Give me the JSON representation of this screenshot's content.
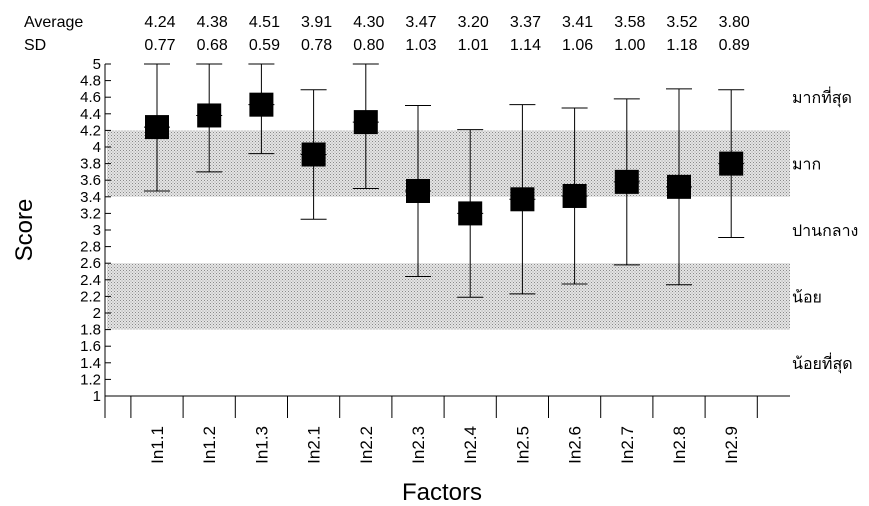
{
  "chart_data": {
    "type": "scatter",
    "xlabel": "Factors",
    "ylabel": "Score",
    "ylim": [
      1,
      5
    ],
    "y_ticks": [
      "1",
      "1.2",
      "1.4",
      "1.6",
      "1.8",
      "2",
      "2.2",
      "2.4",
      "2.6",
      "2.8",
      "3",
      "3.2",
      "3.4",
      "3.6",
      "3.8",
      "4",
      "4.2",
      "4.4",
      "4.6",
      "4.8",
      "5"
    ],
    "categories": [
      "In1.1",
      "In1.2",
      "In1.3",
      "In2.1",
      "In2.2",
      "In2.3",
      "In2.4",
      "In2.5",
      "In2.6",
      "In2.7",
      "In2.8",
      "In2.9"
    ],
    "average_label": "Average",
    "sd_label": "SD",
    "average_text": [
      "4.24",
      "4.38",
      "4.51",
      "3.91",
      "4.30",
      "3.47",
      "3.20",
      "3.37",
      "3.41",
      "3.58",
      "3.52",
      "3.80"
    ],
    "sd_text": [
      "0.77",
      "0.68",
      "0.59",
      "0.78",
      "0.80",
      "1.03",
      "1.01",
      "1.14",
      "1.06",
      "1.00",
      "1.18",
      "0.89"
    ],
    "values": [
      4.24,
      4.38,
      4.51,
      3.91,
      4.3,
      3.47,
      3.2,
      3.37,
      3.41,
      3.58,
      3.52,
      3.8
    ],
    "sd": [
      0.77,
      0.68,
      0.59,
      0.78,
      0.8,
      1.03,
      1.01,
      1.14,
      1.06,
      1.0,
      1.18,
      0.89
    ],
    "bands": [
      {
        "from": 3.4,
        "to": 4.2,
        "shaded": true
      },
      {
        "from": 1.8,
        "to": 2.6,
        "shaded": true
      }
    ],
    "level_labels": [
      {
        "text": "มากที่สุด",
        "y": 4.6
      },
      {
        "text": "มาก",
        "y": 3.8
      },
      {
        "text": "ปานกลาง",
        "y": 3.0
      },
      {
        "text": "น้อย",
        "y": 2.2
      },
      {
        "text": "น้อยที่สุด",
        "y": 1.4
      }
    ],
    "grid": false,
    "marker_color": "#000000",
    "band_color": "#d6d6d6"
  }
}
